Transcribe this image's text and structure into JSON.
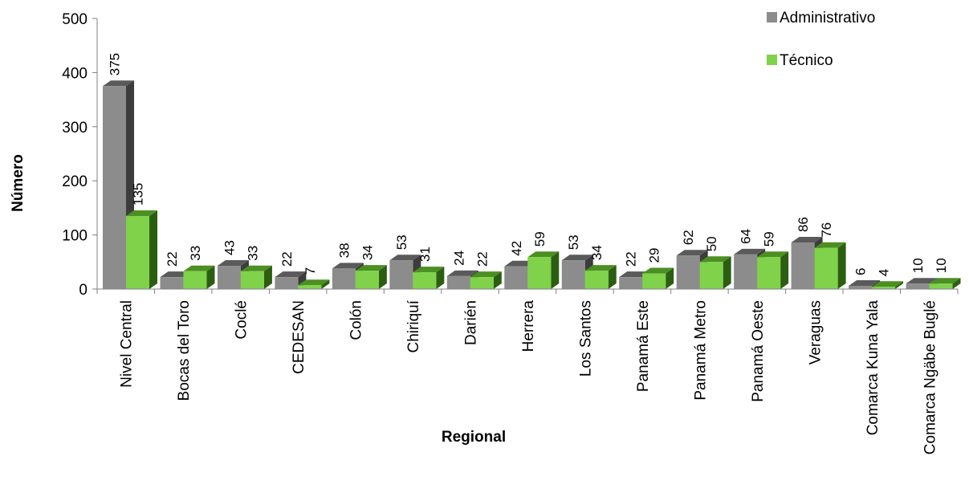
{
  "chart_data": {
    "type": "bar",
    "title": "",
    "xlabel": "Regional",
    "ylabel": "Número",
    "ylim": [
      0,
      500
    ],
    "yticks": [
      0,
      100,
      200,
      300,
      400,
      500
    ],
    "grid": false,
    "legend_position": "top-right",
    "categories": [
      "Nivel Central",
      "Bocas del Toro",
      "Coclé",
      "CEDESAN",
      "Colón",
      "Chiriquí",
      "Darién",
      "Herrera",
      "Los Santos",
      "Panamá Este",
      "Panamá Metro",
      "Panamá Oeste",
      "Veraguas",
      "Comarca Kuna Yala",
      "Comarca Ngäbe Buglé"
    ],
    "series": [
      {
        "name": "Administrativo",
        "color": "#8c8c8c",
        "values": [
          375,
          22,
          43,
          22,
          38,
          53,
          24,
          42,
          53,
          22,
          62,
          64,
          86,
          6,
          10
        ]
      },
      {
        "name": "Técnico",
        "color": "#7fd24a",
        "values": [
          135,
          33,
          33,
          7,
          34,
          31,
          22,
          59,
          34,
          29,
          50,
          59,
          76,
          4,
          10
        ]
      }
    ]
  }
}
